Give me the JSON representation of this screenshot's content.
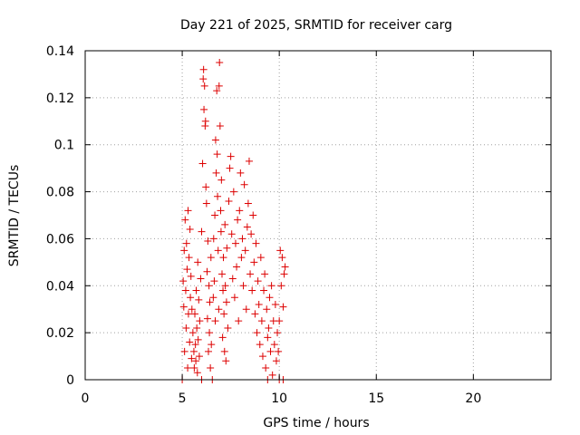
{
  "chart_data": {
    "type": "scatter",
    "title": "Day 221 of 2025, SRMTID for receiver carg",
    "xlabel": "GPS time / hours",
    "ylabel": "SRMTID / TECUs",
    "xlim": [
      0,
      24
    ],
    "ylim": [
      0,
      0.14
    ],
    "x_ticks": [
      0,
      5,
      10,
      15,
      20
    ],
    "x_tick_labels": [
      "0",
      "5",
      "10",
      "15",
      "20"
    ],
    "y_ticks": [
      0,
      0.02,
      0.04,
      0.06,
      0.08,
      0.1,
      0.12,
      0.14
    ],
    "y_tick_labels": [
      "0",
      "0.02",
      "0.04",
      "0.06",
      "0.08",
      "0.1",
      "0.12",
      "0.14"
    ],
    "grid": true,
    "marker": "+",
    "colors": {
      "marker": "#dd0000",
      "grid": "#a0a0a0",
      "axis": "#000000"
    },
    "series": [
      {
        "name": "SRMTID",
        "points": [
          [
            5.0,
            0.0
          ],
          [
            5.05,
            0.042
          ],
          [
            5.08,
            0.031
          ],
          [
            5.1,
            0.055
          ],
          [
            5.12,
            0.012
          ],
          [
            5.15,
            0.068
          ],
          [
            5.18,
            0.038
          ],
          [
            5.2,
            0.022
          ],
          [
            5.22,
            0.058
          ],
          [
            5.25,
            0.047
          ],
          [
            5.28,
            0.005
          ],
          [
            5.3,
            0.072
          ],
          [
            5.32,
            0.028
          ],
          [
            5.35,
            0.052
          ],
          [
            5.38,
            0.016
          ],
          [
            5.4,
            0.064
          ],
          [
            5.42,
            0.035
          ],
          [
            5.45,
            0.044
          ],
          [
            5.48,
            0.009
          ],
          [
            5.5,
            0.03
          ],
          [
            5.55,
            0.02
          ],
          [
            5.6,
            0.012
          ],
          [
            5.62,
            0.005
          ],
          [
            5.65,
            0.028
          ],
          [
            5.68,
            0.015
          ],
          [
            5.7,
            0.008
          ],
          [
            5.72,
            0.038
          ],
          [
            5.75,
            0.022
          ],
          [
            5.78,
            0.003
          ],
          [
            5.8,
            0.05
          ],
          [
            5.82,
            0.017
          ],
          [
            5.85,
            0.034
          ],
          [
            5.88,
            0.01
          ],
          [
            5.9,
            0.025
          ],
          [
            5.95,
            0.043
          ],
          [
            6.0,
            0.063
          ],
          [
            6.0,
            0.0
          ],
          [
            6.05,
            0.092
          ],
          [
            6.08,
            0.128
          ],
          [
            6.1,
            0.132
          ],
          [
            6.12,
            0.115
          ],
          [
            6.15,
            0.125
          ],
          [
            6.18,
            0.108
          ],
          [
            6.2,
            0.11
          ],
          [
            6.22,
            0.082
          ],
          [
            6.25,
            0.075
          ],
          [
            6.28,
            0.046
          ],
          [
            6.3,
            0.026
          ],
          [
            6.32,
            0.059
          ],
          [
            6.35,
            0.012
          ],
          [
            6.38,
            0.04
          ],
          [
            6.4,
            0.02
          ],
          [
            6.42,
            0.033
          ],
          [
            6.45,
            0.005
          ],
          [
            6.48,
            0.052
          ],
          [
            6.5,
            0.015
          ],
          [
            6.55,
            0.0
          ],
          [
            6.6,
            0.035
          ],
          [
            6.62,
            0.06
          ],
          [
            6.65,
            0.042
          ],
          [
            6.68,
            0.07
          ],
          [
            6.7,
            0.025
          ],
          [
            6.72,
            0.102
          ],
          [
            6.75,
            0.088
          ],
          [
            6.78,
            0.123
          ],
          [
            6.8,
            0.096
          ],
          [
            6.82,
            0.078
          ],
          [
            6.85,
            0.055
          ],
          [
            6.88,
            0.03
          ],
          [
            6.9,
            0.125
          ],
          [
            6.92,
            0.135
          ],
          [
            6.95,
            0.108
          ],
          [
            6.98,
            0.072
          ],
          [
            7.0,
            0.063
          ],
          [
            7.02,
            0.085
          ],
          [
            7.05,
            0.045
          ],
          [
            7.08,
            0.018
          ],
          [
            7.1,
            0.038
          ],
          [
            7.12,
            0.052
          ],
          [
            7.15,
            0.028
          ],
          [
            7.18,
            0.012
          ],
          [
            7.2,
            0.066
          ],
          [
            7.22,
            0.04
          ],
          [
            7.25,
            0.008
          ],
          [
            7.28,
            0.033
          ],
          [
            7.3,
            0.056
          ],
          [
            7.35,
            0.022
          ],
          [
            7.4,
            0.076
          ],
          [
            7.45,
            0.09
          ],
          [
            7.5,
            0.095
          ],
          [
            7.55,
            0.062
          ],
          [
            7.6,
            0.043
          ],
          [
            7.65,
            0.08
          ],
          [
            7.7,
            0.035
          ],
          [
            7.75,
            0.058
          ],
          [
            7.8,
            0.048
          ],
          [
            7.85,
            0.068
          ],
          [
            7.9,
            0.025
          ],
          [
            7.95,
            0.072
          ],
          [
            8.0,
            0.088
          ],
          [
            8.05,
            0.052
          ],
          [
            8.1,
            0.06
          ],
          [
            8.15,
            0.04
          ],
          [
            8.2,
            0.083
          ],
          [
            8.25,
            0.055
          ],
          [
            8.3,
            0.03
          ],
          [
            8.35,
            0.065
          ],
          [
            8.4,
            0.075
          ],
          [
            8.45,
            0.093
          ],
          [
            8.5,
            0.045
          ],
          [
            8.55,
            0.062
          ],
          [
            8.6,
            0.038
          ],
          [
            8.65,
            0.07
          ],
          [
            8.7,
            0.05
          ],
          [
            8.75,
            0.028
          ],
          [
            8.8,
            0.058
          ],
          [
            8.85,
            0.02
          ],
          [
            8.9,
            0.042
          ],
          [
            8.95,
            0.032
          ],
          [
            9.0,
            0.015
          ],
          [
            9.05,
            0.052
          ],
          [
            9.1,
            0.025
          ],
          [
            9.15,
            0.01
          ],
          [
            9.2,
            0.038
          ],
          [
            9.25,
            0.045
          ],
          [
            9.3,
            0.005
          ],
          [
            9.35,
            0.03
          ],
          [
            9.4,
            0.018
          ],
          [
            9.45,
            0.022
          ],
          [
            9.5,
            0.035
          ],
          [
            9.55,
            0.012
          ],
          [
            9.6,
            0.04
          ],
          [
            9.65,
            0.002
          ],
          [
            9.7,
            0.025
          ],
          [
            9.75,
            0.015
          ],
          [
            9.8,
            0.032
          ],
          [
            9.85,
            0.008
          ],
          [
            9.9,
            0.02
          ],
          [
            9.95,
            0.012
          ],
          [
            10.0,
            0.025
          ],
          [
            10.05,
            0.055
          ],
          [
            10.1,
            0.04
          ],
          [
            10.15,
            0.052
          ],
          [
            10.2,
            0.031
          ],
          [
            10.25,
            0.045
          ],
          [
            10.3,
            0.048
          ],
          [
            10.0,
            0.0
          ],
          [
            10.2,
            0.0
          ],
          [
            9.4,
            0.0
          ]
        ]
      }
    ]
  }
}
